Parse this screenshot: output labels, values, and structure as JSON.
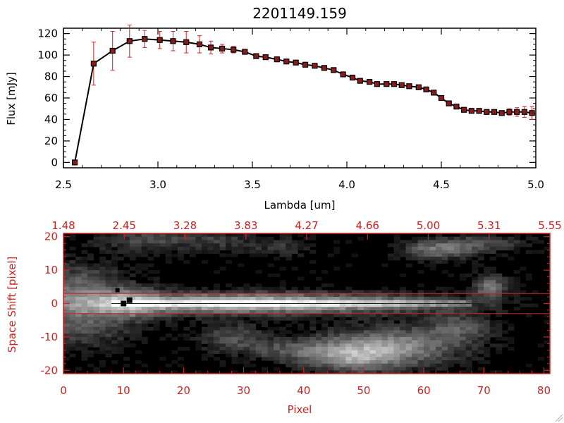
{
  "chart_data": [
    {
      "type": "line",
      "title": "2201149.159",
      "xlabel": "Lambda [um]",
      "ylabel": "Flux [mJy]",
      "xlim": [
        2.5,
        5.0
      ],
      "ylim": [
        -5,
        125
      ],
      "xticks": [
        "2.5",
        "3.0",
        "3.5",
        "4.0",
        "4.5",
        "5.0"
      ],
      "yticks": [
        "0",
        "20",
        "40",
        "60",
        "80",
        "100",
        "120"
      ],
      "line_color": "#000000",
      "marker_color": "#8b1a1a",
      "errorbar_color": "#cc2222",
      "series": [
        {
          "x": [
            2.56,
            2.66,
            2.76,
            2.85,
            2.93,
            3.01,
            3.08,
            3.15,
            3.22,
            3.28,
            3.34,
            3.4,
            3.46,
            3.52,
            3.57,
            3.63,
            3.68,
            3.73,
            3.78,
            3.83,
            3.88,
            3.93,
            3.98,
            4.03,
            4.07,
            4.12,
            4.16,
            4.21,
            4.25,
            4.29,
            4.33,
            4.38,
            4.42,
            4.46,
            4.5,
            4.54,
            4.58,
            4.62,
            4.66,
            4.7,
            4.74,
            4.78,
            4.82,
            4.86,
            4.9,
            4.94,
            4.98
          ],
          "y": [
            0,
            92,
            104,
            113,
            115,
            114,
            113,
            112,
            110,
            107,
            106,
            105,
            103,
            99,
            98,
            96,
            94,
            93,
            91,
            90,
            88,
            86,
            82,
            79,
            76,
            75,
            73,
            73,
            73,
            72,
            71,
            70,
            68,
            65,
            60,
            55,
            52,
            49,
            48,
            48,
            47,
            47,
            46,
            47,
            47,
            47,
            46
          ],
          "yerr": [
            0,
            20,
            18,
            15,
            8,
            8,
            9,
            10,
            8,
            6,
            4,
            3,
            2,
            2,
            2,
            2,
            2,
            2,
            2,
            2,
            2,
            2,
            2,
            2,
            2,
            2,
            2,
            2,
            2,
            2,
            2,
            2,
            2,
            2,
            2,
            2,
            2,
            2,
            2,
            2,
            2,
            2,
            2,
            3,
            4,
            5,
            6
          ]
        }
      ]
    },
    {
      "type": "heatmap",
      "xlabel": "Pixel",
      "ylabel": "Space Shift [pixel]",
      "xlim": [
        0,
        81
      ],
      "ylim": [
        -21,
        21
      ],
      "xticks": [
        "0",
        "10",
        "20",
        "30",
        "40",
        "50",
        "60",
        "70",
        "80"
      ],
      "yticks": [
        "-20",
        "-10",
        "0",
        "10",
        "20"
      ],
      "top_ticks": [
        "1.48",
        "2.45",
        "3.28",
        "3.83",
        "4.27",
        "4.66",
        "5.00",
        "5.31",
        "5.55"
      ],
      "extraction_lines": [
        3,
        -3
      ],
      "axis_color": "#cc2222",
      "colormap": "grayscale"
    }
  ]
}
